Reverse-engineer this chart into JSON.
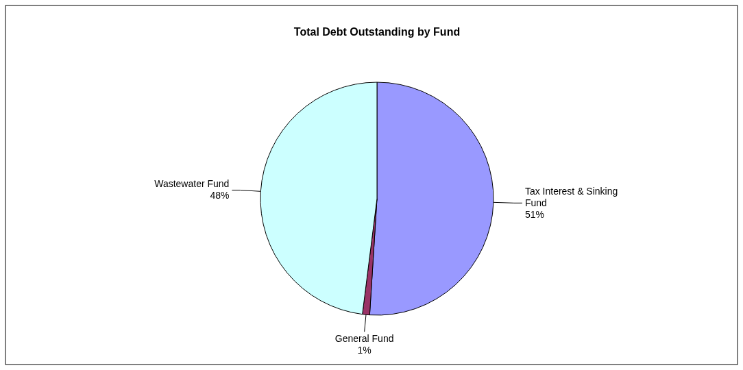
{
  "chart_data": {
    "type": "pie",
    "title": "Total Debt Outstanding by Fund",
    "categories": [
      "Tax Interest & Sinking Fund",
      "General Fund",
      "Wastewater Fund"
    ],
    "values": [
      51,
      1,
      48
    ],
    "colors": [
      "#9999ff",
      "#993366",
      "#ccffff"
    ],
    "value_labels": [
      "51%",
      "1%",
      "48%"
    ]
  }
}
